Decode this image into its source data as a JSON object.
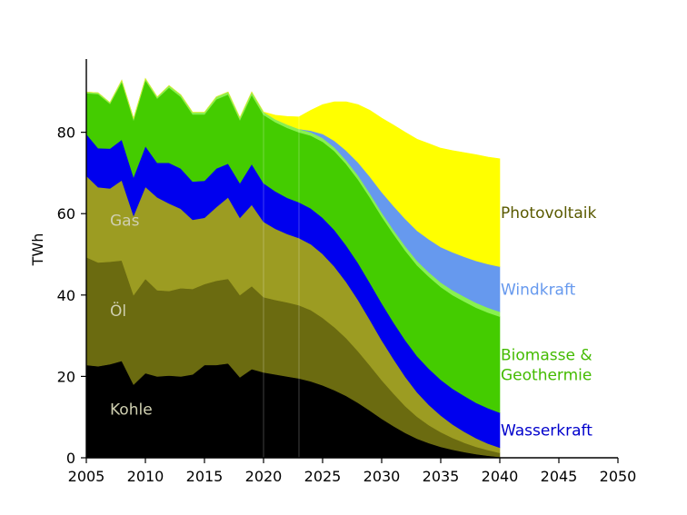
{
  "chart_data": {
    "type": "area",
    "stacked": true,
    "ylabel": "TWh",
    "xlabel": "",
    "title": "",
    "xlim": [
      2005,
      2050
    ],
    "ylim": [
      0,
      98
    ],
    "x_ticks": [
      2005,
      2010,
      2015,
      2020,
      2025,
      2030,
      2035,
      2040,
      2045,
      2050
    ],
    "y_ticks": [
      0,
      20,
      40,
      60,
      80
    ],
    "grid": false,
    "legend": "none; series labelled directly",
    "x_history": [
      2005,
      2006,
      2007,
      2008,
      2009,
      2010,
      2011,
      2012,
      2013,
      2014,
      2015,
      2016,
      2017,
      2018,
      2019,
      2020,
      2021,
      2022,
      2023
    ],
    "x_projection": [
      2023,
      2024,
      2025,
      2026,
      2027,
      2028,
      2029,
      2030,
      2031,
      2032,
      2033,
      2034,
      2035,
      2036,
      2037,
      2038,
      2039,
      2040
    ],
    "series": [
      {
        "name": "Kohle",
        "label_group": "inside",
        "color": "#000000",
        "history": [
          22.8,
          22.5,
          23.0,
          23.8,
          18.0,
          20.8,
          20.0,
          20.2,
          20.0,
          20.5,
          22.8,
          22.8,
          23.2,
          19.8,
          21.8,
          21.0,
          20.5,
          20.0,
          19.5
        ],
        "projection": [
          19.5,
          18.8,
          17.8,
          16.6,
          15.2,
          13.5,
          11.6,
          9.6,
          7.8,
          6.1,
          4.7,
          3.6,
          2.7,
          2.0,
          1.4,
          0.9,
          0.5,
          0.2
        ]
      },
      {
        "name": "Öl",
        "label_group": "inside",
        "color": "#6b6b10",
        "history": [
          26.5,
          25.5,
          25.2,
          24.7,
          22.0,
          23.2,
          21.2,
          20.8,
          21.7,
          21.0,
          19.9,
          20.7,
          20.8,
          20.2,
          20.4,
          18.5,
          18.3,
          18.2,
          18.0
        ],
        "projection": [
          18.0,
          17.5,
          16.6,
          15.5,
          14.2,
          12.7,
          11.1,
          9.5,
          8.0,
          6.6,
          5.4,
          4.4,
          3.6,
          2.9,
          2.3,
          1.8,
          1.4,
          1.0
        ]
      },
      {
        "name": "Gas",
        "label_group": "inside",
        "color": "#9c9c22",
        "history": [
          20.0,
          18.5,
          18.0,
          19.7,
          19.5,
          22.6,
          22.8,
          21.5,
          19.5,
          17.0,
          16.3,
          18.1,
          20.0,
          19.0,
          20.0,
          18.5,
          17.5,
          16.8,
          16.5
        ],
        "projection": [
          16.5,
          16.2,
          15.7,
          14.9,
          13.8,
          12.6,
          11.2,
          9.8,
          8.5,
          7.2,
          6.0,
          5.0,
          4.1,
          3.3,
          2.7,
          2.1,
          1.6,
          1.3
        ]
      },
      {
        "name": "Wasserkraft",
        "label_group": "right",
        "color": "#0000ee",
        "history": [
          10.3,
          9.6,
          9.8,
          10.0,
          9.5,
          10.0,
          8.5,
          10.0,
          9.9,
          9.4,
          9.1,
          9.5,
          8.3,
          8.5,
          10.0,
          9.5,
          9.2,
          8.9,
          8.8
        ],
        "projection": [
          8.8,
          8.8,
          8.9,
          9.0,
          9.0,
          9.1,
          9.1,
          9.1,
          9.0,
          9.0,
          8.9,
          8.9,
          8.8,
          8.8,
          8.8,
          8.7,
          8.7,
          8.6
        ]
      },
      {
        "name": "Biomasse & Geothermie",
        "label_group": "right",
        "color": "#44cc00",
        "history": [
          10.0,
          13.3,
          11.0,
          14.2,
          14.0,
          16.2,
          15.8,
          18.5,
          17.6,
          16.5,
          16.3,
          17.0,
          17.0,
          15.5,
          17.0,
          16.8,
          17.0,
          17.2,
          17.2
        ],
        "projection": [
          17.2,
          17.9,
          18.7,
          19.4,
          20.0,
          20.5,
          21.0,
          21.3,
          21.7,
          22.0,
          22.3,
          22.6,
          22.8,
          23.0,
          23.2,
          23.4,
          23.5,
          23.6
        ]
      },
      {
        "name": "",
        "label_group": "none",
        "color": "#88f050",
        "history": [
          0.3,
          0.3,
          0.3,
          0.4,
          0.4,
          0.4,
          0.4,
          0.5,
          0.5,
          0.5,
          0.5,
          0.6,
          0.6,
          0.6,
          0.7,
          0.7,
          0.7,
          0.8,
          0.8
        ],
        "projection": [
          0.8,
          0.8,
          0.9,
          0.9,
          0.9,
          1.0,
          1.0,
          1.0,
          1.0,
          1.1,
          1.1,
          1.1,
          1.1,
          1.2,
          1.2,
          1.2,
          1.2,
          1.2
        ]
      },
      {
        "name": "Windkraft",
        "label_group": "right",
        "color": "#6699ee",
        "history": [
          0,
          0,
          0,
          0,
          0,
          0,
          0,
          0,
          0,
          0,
          0,
          0,
          0,
          0,
          0,
          0,
          0,
          0,
          0
        ],
        "projection": [
          0,
          0.4,
          1.0,
          1.6,
          2.4,
          3.2,
          4.1,
          5.0,
          5.9,
          6.7,
          7.4,
          8.1,
          8.7,
          9.3,
          9.8,
          10.3,
          10.7,
          11.1
        ]
      },
      {
        "name": "Photovoltaik",
        "label_group": "right",
        "color": "#ffff00",
        "history": [
          0,
          0,
          0,
          0,
          0,
          0,
          0,
          0,
          0,
          0,
          0,
          0,
          0,
          0,
          0,
          0,
          1.0,
          2.0,
          3.0
        ],
        "projection": [
          3.0,
          5.0,
          7.2,
          9.6,
          12.0,
          14.2,
          16.3,
          18.2,
          19.9,
          21.3,
          22.5,
          23.5,
          24.3,
          25.0,
          25.6,
          26.1,
          26.3,
          26.5
        ]
      }
    ]
  }
}
